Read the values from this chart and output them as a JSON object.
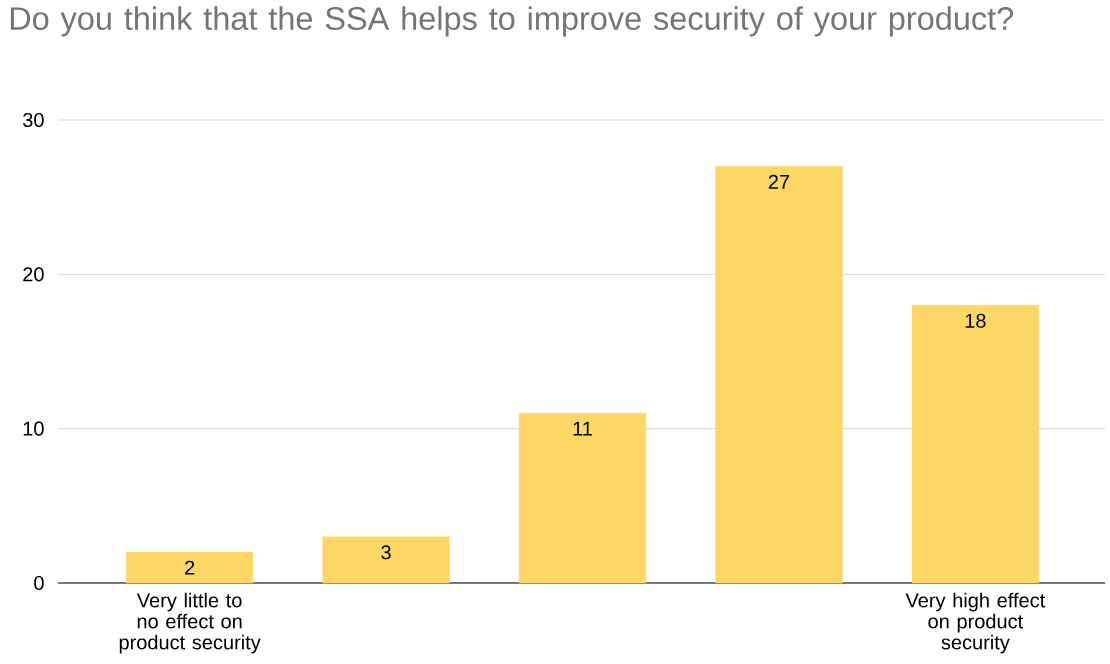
{
  "chart_data": {
    "type": "bar",
    "title": "Do you think that the SSA helps to improve security of your product?",
    "categories": [
      "Very little to no effect on product security",
      null,
      null,
      null,
      "Very high effect on product security"
    ],
    "values": [
      2,
      3,
      11,
      27,
      18
    ],
    "color": "#fdd766",
    "ylim": [
      0,
      30
    ],
    "yticks": [
      0,
      10,
      20,
      30
    ],
    "grid": "y",
    "data_labels": true
  }
}
